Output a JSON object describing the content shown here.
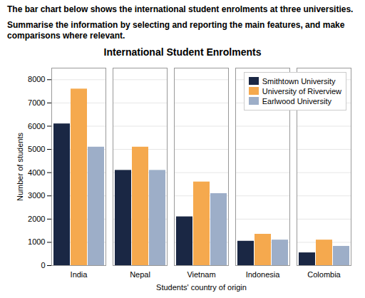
{
  "chart_data": {
    "type": "bar",
    "title": "International Student Enrolments",
    "annotations": [
      "The bar chart below shows the international student enrolments at three universities.",
      "Summarise the information by selecting and reporting the main features, and make comparisons where relevant."
    ],
    "xlabel": "Students' country of origin",
    "ylabel": "Number of students",
    "categories": [
      "India",
      "Nepal",
      "Vietnam",
      "Indonesia",
      "Colombia"
    ],
    "series": [
      {
        "name": "Smithtown University",
        "color": "#1a2744",
        "values": [
          6100,
          4100,
          2100,
          1050,
          550
        ]
      },
      {
        "name": "University of Riverview",
        "color": "#f5a94e",
        "values": [
          7600,
          5100,
          3600,
          1350,
          1100
        ]
      },
      {
        "name": "Earlwood University",
        "color": "#9daec8",
        "values": [
          5100,
          4100,
          3100,
          1100,
          830
        ]
      }
    ],
    "ylim": [
      0,
      8500
    ],
    "yticks": [
      0,
      1000,
      2000,
      3000,
      4000,
      5000,
      6000,
      7000,
      8000
    ],
    "grid": true,
    "legend": "upper right"
  }
}
